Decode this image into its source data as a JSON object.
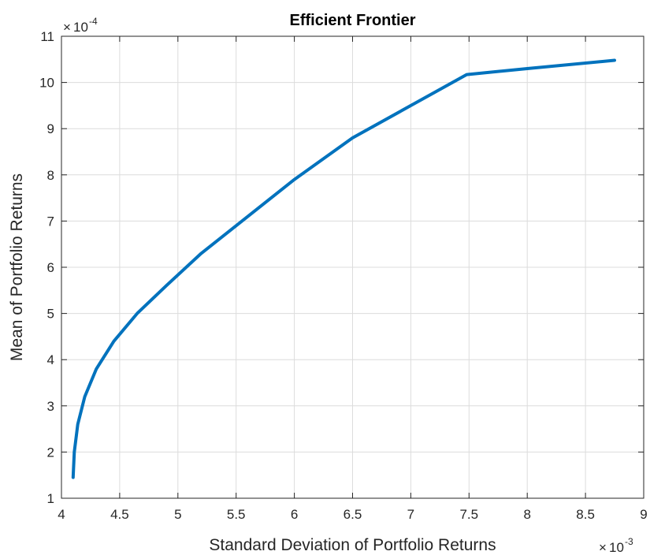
{
  "chart_data": {
    "type": "line",
    "title": "Efficient Frontier",
    "xlabel": "Standard Deviation of Portfolio Returns",
    "ylabel": "Mean of Portfolio Returns",
    "x_multiplier": "10^-3",
    "y_multiplier": "10^-4",
    "x_multiplier_base": "10",
    "x_multiplier_exp": "-3",
    "y_multiplier_base": "10",
    "y_multiplier_exp": "-4",
    "multiplier_sign": "×",
    "xlim": [
      4,
      9
    ],
    "ylim": [
      1,
      11
    ],
    "xticks": [
      4,
      4.5,
      5,
      5.5,
      6,
      6.5,
      7,
      7.5,
      8,
      8.5,
      9
    ],
    "xtick_labels": [
      "4",
      "4.5",
      "5",
      "5.5",
      "6",
      "6.5",
      "7",
      "7.5",
      "8",
      "8.5",
      "9"
    ],
    "yticks": [
      1,
      2,
      3,
      4,
      5,
      6,
      7,
      8,
      9,
      10,
      11
    ],
    "ytick_labels": [
      "1",
      "2",
      "3",
      "4",
      "5",
      "6",
      "7",
      "8",
      "9",
      "10",
      "11"
    ],
    "grid": true,
    "series_color": "#0072BD",
    "series": [
      {
        "x": [
          4.1,
          4.11,
          4.14,
          4.2,
          4.3,
          4.45,
          4.65,
          4.9,
          5.2,
          5.55,
          6.0,
          6.5,
          7.0,
          7.48,
          8.0,
          8.75
        ],
        "y": [
          1.45,
          2.0,
          2.6,
          3.2,
          3.8,
          4.4,
          5.0,
          5.6,
          6.3,
          7.0,
          7.9,
          8.8,
          9.5,
          10.17,
          10.3,
          10.48
        ]
      }
    ]
  }
}
